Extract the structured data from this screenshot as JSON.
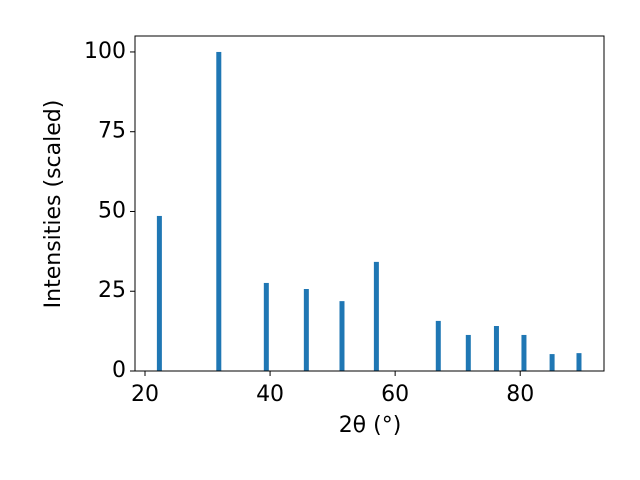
{
  "chart_data": {
    "type": "bar",
    "xlabel": "2θ (°)",
    "ylabel": "Intensities (scaled)",
    "x": [
      22.3,
      31.8,
      39.4,
      45.8,
      51.5,
      57.0,
      66.9,
      71.7,
      76.2,
      80.6,
      85.1,
      89.4
    ],
    "values": [
      48.6,
      100,
      27.6,
      25.7,
      21.9,
      34.2,
      15.7,
      11.3,
      14.1,
      11.3,
      5.3,
      5.6
    ],
    "color": "#1f77b4",
    "xlim": [
      18.4,
      93.4
    ],
    "ylim": [
      0,
      105
    ],
    "xticks": [
      20,
      40,
      60,
      80
    ],
    "yticks": [
      0,
      25,
      50,
      75,
      100
    ],
    "grid": false
  }
}
